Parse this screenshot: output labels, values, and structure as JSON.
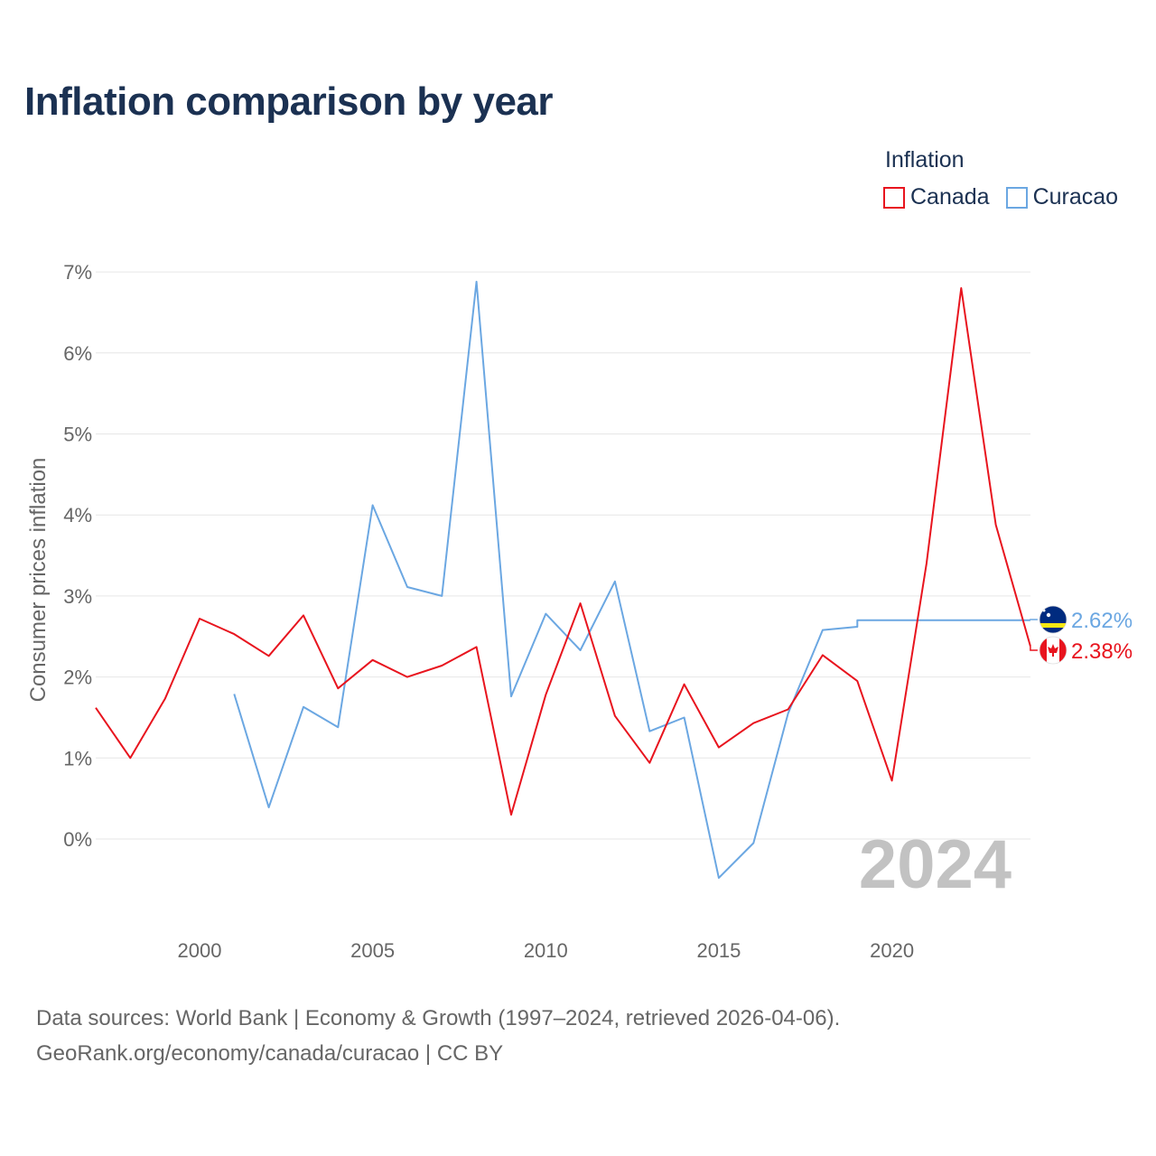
{
  "title": "Inflation comparison by year",
  "legend": {
    "title": "Inflation",
    "items": [
      {
        "label": "Canada",
        "color": "#e8141e"
      },
      {
        "label": "Curacao",
        "color": "#6ba7e2"
      }
    ]
  },
  "footer": {
    "line1": "Data sources: World Bank | Economy & Growth (1997–2024, retrieved 2026-04-06).",
    "line2": "GeoRank.org/economy/canada/curacao | CC BY"
  },
  "chart_data": {
    "type": "line",
    "title": "Inflation comparison by year",
    "xlabel": "",
    "ylabel": "Consumer prices inflation",
    "xlim": [
      1997,
      2024
    ],
    "ylim": [
      -1,
      7
    ],
    "y_ticks": [
      0,
      1,
      2,
      3,
      4,
      5,
      6,
      7
    ],
    "y_tick_labels": [
      "0%",
      "1%",
      "2%",
      "3%",
      "4%",
      "5%",
      "6%",
      "7%"
    ],
    "x_ticks": [
      2000,
      2005,
      2010,
      2015,
      2020
    ],
    "x_tick_labels": [
      "2000",
      "2005",
      "2010",
      "2015",
      "2020"
    ],
    "grid": true,
    "year_watermark": "2024",
    "series": [
      {
        "name": "Canada",
        "color": "#e8141e",
        "end_label": "2.38%",
        "flag": "canada-flag",
        "points": [
          [
            1997,
            1.62
          ],
          [
            1998,
            1.0
          ],
          [
            1999,
            1.73
          ],
          [
            2000,
            2.72
          ],
          [
            2001,
            2.53
          ],
          [
            2002,
            2.26
          ],
          [
            2003,
            2.76
          ],
          [
            2004,
            1.86
          ],
          [
            2005,
            2.21
          ],
          [
            2006,
            2.0
          ],
          [
            2007,
            2.14
          ],
          [
            2008,
            2.37
          ],
          [
            2009,
            0.3
          ],
          [
            2010,
            1.78
          ],
          [
            2011,
            2.91
          ],
          [
            2012,
            1.52
          ],
          [
            2013,
            0.94
          ],
          [
            2014,
            1.91
          ],
          [
            2015,
            1.13
          ],
          [
            2016,
            1.43
          ],
          [
            2017,
            1.6
          ],
          [
            2018,
            2.27
          ],
          [
            2019,
            1.95
          ],
          [
            2020,
            0.72
          ],
          [
            2021,
            3.4
          ],
          [
            2022,
            6.8
          ],
          [
            2023,
            3.88
          ],
          [
            2024,
            2.38
          ]
        ]
      },
      {
        "name": "Curacao",
        "color": "#6ba7e2",
        "end_label": "2.62%",
        "flag": "curacao-flag",
        "points": [
          [
            2001,
            1.79
          ],
          [
            2002,
            0.39
          ],
          [
            2003,
            1.63
          ],
          [
            2004,
            1.38
          ],
          [
            2005,
            4.12
          ],
          [
            2006,
            3.11
          ],
          [
            2007,
            3.0
          ],
          [
            2008,
            6.88
          ],
          [
            2009,
            1.76
          ],
          [
            2010,
            2.78
          ],
          [
            2011,
            2.33
          ],
          [
            2012,
            3.18
          ],
          [
            2013,
            1.33
          ],
          [
            2014,
            1.5
          ],
          [
            2015,
            -0.48
          ],
          [
            2016,
            -0.05
          ],
          [
            2017,
            1.55
          ],
          [
            2018,
            2.58
          ],
          [
            2019,
            2.62
          ]
        ],
        "carried_to": 2024
      }
    ]
  }
}
